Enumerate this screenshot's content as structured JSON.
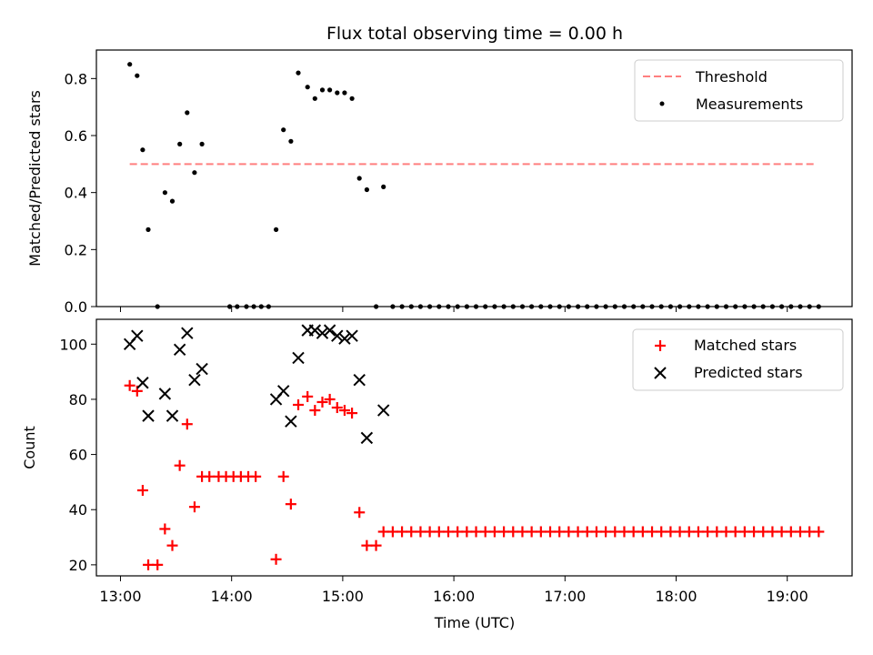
{
  "chart_data": [
    {
      "type": "scatter",
      "title": "Flux total observing time = 0.00 h",
      "xlabel": "",
      "ylabel": "Matched/Predicted stars",
      "xlim": [
        "12:47",
        "19:35"
      ],
      "ylim": [
        0,
        0.9
      ],
      "yticks": [
        0.0,
        0.2,
        0.4,
        0.6,
        0.8
      ],
      "ytick_labels": [
        "0.0",
        "0.2",
        "0.4",
        "0.6",
        "0.8"
      ],
      "grid": false,
      "legend_position": "top-right",
      "threshold": {
        "name": "Threshold",
        "y": 0.5,
        "x_start": "13:05",
        "x_end": "19:15",
        "color": "#ff7f7f"
      },
      "series": [
        {
          "name": "Measurements",
          "color": "#000000",
          "points": [
            [
              "13:05",
              0.85
            ],
            [
              "13:09",
              0.81
            ],
            [
              "13:12",
              0.55
            ],
            [
              "13:15",
              0.27
            ],
            [
              "13:20",
              0.0
            ],
            [
              "13:24",
              0.4
            ],
            [
              "13:28",
              0.37
            ],
            [
              "13:32",
              0.57
            ],
            [
              "13:36",
              0.68
            ],
            [
              "13:40",
              0.47
            ],
            [
              "13:44",
              0.57
            ],
            [
              "13:59",
              0.0
            ],
            [
              "14:03",
              0.0
            ],
            [
              "14:08",
              0.0
            ],
            [
              "14:12",
              0.0
            ],
            [
              "14:16",
              0.0
            ],
            [
              "14:20",
              0.0
            ],
            [
              "14:24",
              0.27
            ],
            [
              "14:28",
              0.62
            ],
            [
              "14:32",
              0.58
            ],
            [
              "14:36",
              0.82
            ],
            [
              "14:41",
              0.77
            ],
            [
              "14:45",
              0.73
            ],
            [
              "14:49",
              0.76
            ],
            [
              "14:53",
              0.76
            ],
            [
              "14:57",
              0.75
            ],
            [
              "15:01",
              0.75
            ],
            [
              "15:05",
              0.73
            ],
            [
              "15:09",
              0.45
            ],
            [
              "15:13",
              0.41
            ],
            [
              "15:18",
              0.0
            ],
            [
              "15:22",
              0.42
            ],
            [
              "15:27",
              0.0
            ],
            [
              "15:32",
              0.0
            ],
            [
              "15:37",
              0.0
            ],
            [
              "15:42",
              0.0
            ],
            [
              "15:47",
              0.0
            ],
            [
              "15:52",
              0.0
            ],
            [
              "15:57",
              0.0
            ],
            [
              "16:02",
              0.0
            ],
            [
              "16:07",
              0.0
            ],
            [
              "16:12",
              0.0
            ],
            [
              "16:17",
              0.0
            ],
            [
              "16:22",
              0.0
            ],
            [
              "16:27",
              0.0
            ],
            [
              "16:32",
              0.0
            ],
            [
              "16:37",
              0.0
            ],
            [
              "16:42",
              0.0
            ],
            [
              "16:47",
              0.0
            ],
            [
              "16:52",
              0.0
            ],
            [
              "16:57",
              0.0
            ],
            [
              "17:02",
              0.0
            ],
            [
              "17:07",
              0.0
            ],
            [
              "17:12",
              0.0
            ],
            [
              "17:17",
              0.0
            ],
            [
              "17:22",
              0.0
            ],
            [
              "17:27",
              0.0
            ],
            [
              "17:32",
              0.0
            ],
            [
              "17:37",
              0.0
            ],
            [
              "17:42",
              0.0
            ],
            [
              "17:47",
              0.0
            ],
            [
              "17:52",
              0.0
            ],
            [
              "17:57",
              0.0
            ],
            [
              "18:02",
              0.0
            ],
            [
              "18:07",
              0.0
            ],
            [
              "18:12",
              0.0
            ],
            [
              "18:17",
              0.0
            ],
            [
              "18:22",
              0.0
            ],
            [
              "18:27",
              0.0
            ],
            [
              "18:32",
              0.0
            ],
            [
              "18:37",
              0.0
            ],
            [
              "18:42",
              0.0
            ],
            [
              "18:47",
              0.0
            ],
            [
              "18:52",
              0.0
            ],
            [
              "18:57",
              0.0
            ],
            [
              "19:02",
              0.0
            ],
            [
              "19:07",
              0.0
            ],
            [
              "19:12",
              0.0
            ],
            [
              "19:17",
              0.0
            ]
          ]
        }
      ]
    },
    {
      "type": "scatter",
      "title": "",
      "xlabel": "Time (UTC)",
      "ylabel": "Count",
      "xlim": [
        "12:47",
        "19:35"
      ],
      "ylim": [
        16,
        109
      ],
      "xticks": [
        "13:00",
        "14:00",
        "15:00",
        "16:00",
        "17:00",
        "18:00",
        "19:00"
      ],
      "yticks": [
        20,
        40,
        60,
        80,
        100
      ],
      "ytick_labels": [
        "20",
        "40",
        "60",
        "80",
        "100"
      ],
      "grid": false,
      "legend_position": "top-right",
      "series": [
        {
          "name": "Matched stars",
          "marker": "plus",
          "color": "#ff0000",
          "points": [
            [
              "13:05",
              85
            ],
            [
              "13:09",
              83
            ],
            [
              "13:12",
              47
            ],
            [
              "13:15",
              20
            ],
            [
              "13:20",
              20
            ],
            [
              "13:24",
              33
            ],
            [
              "13:28",
              27
            ],
            [
              "13:32",
              56
            ],
            [
              "13:36",
              71
            ],
            [
              "13:40",
              41
            ],
            [
              "13:44",
              52
            ],
            [
              "13:48",
              52
            ],
            [
              "13:53",
              52
            ],
            [
              "13:57",
              52
            ],
            [
              "14:01",
              52
            ],
            [
              "14:05",
              52
            ],
            [
              "14:09",
              52
            ],
            [
              "14:13",
              52
            ],
            [
              "14:24",
              22
            ],
            [
              "14:28",
              52
            ],
            [
              "14:32",
              42
            ],
            [
              "14:36",
              78
            ],
            [
              "14:41",
              81
            ],
            [
              "14:45",
              76
            ],
            [
              "14:49",
              79
            ],
            [
              "14:53",
              80
            ],
            [
              "14:57",
              77
            ],
            [
              "15:01",
              76
            ],
            [
              "15:05",
              75
            ],
            [
              "15:09",
              39
            ],
            [
              "15:13",
              27
            ],
            [
              "15:18",
              27
            ],
            [
              "15:22",
              32
            ],
            [
              "15:27",
              32
            ],
            [
              "15:32",
              32
            ],
            [
              "15:37",
              32
            ],
            [
              "15:42",
              32
            ],
            [
              "15:47",
              32
            ],
            [
              "15:52",
              32
            ],
            [
              "15:57",
              32
            ],
            [
              "16:02",
              32
            ],
            [
              "16:07",
              32
            ],
            [
              "16:12",
              32
            ],
            [
              "16:17",
              32
            ],
            [
              "16:22",
              32
            ],
            [
              "16:27",
              32
            ],
            [
              "16:32",
              32
            ],
            [
              "16:37",
              32
            ],
            [
              "16:42",
              32
            ],
            [
              "16:47",
              32
            ],
            [
              "16:52",
              32
            ],
            [
              "16:57",
              32
            ],
            [
              "17:02",
              32
            ],
            [
              "17:07",
              32
            ],
            [
              "17:12",
              32
            ],
            [
              "17:17",
              32
            ],
            [
              "17:22",
              32
            ],
            [
              "17:27",
              32
            ],
            [
              "17:32",
              32
            ],
            [
              "17:37",
              32
            ],
            [
              "17:42",
              32
            ],
            [
              "17:47",
              32
            ],
            [
              "17:52",
              32
            ],
            [
              "17:57",
              32
            ],
            [
              "18:02",
              32
            ],
            [
              "18:07",
              32
            ],
            [
              "18:12",
              32
            ],
            [
              "18:17",
              32
            ],
            [
              "18:22",
              32
            ],
            [
              "18:27",
              32
            ],
            [
              "18:32",
              32
            ],
            [
              "18:37",
              32
            ],
            [
              "18:42",
              32
            ],
            [
              "18:47",
              32
            ],
            [
              "18:52",
              32
            ],
            [
              "18:57",
              32
            ],
            [
              "19:02",
              32
            ],
            [
              "19:07",
              32
            ],
            [
              "19:12",
              32
            ],
            [
              "19:17",
              32
            ]
          ]
        },
        {
          "name": "Predicted stars",
          "marker": "x",
          "color": "#000000",
          "points": [
            [
              "13:05",
              100
            ],
            [
              "13:09",
              103
            ],
            [
              "13:12",
              86
            ],
            [
              "13:15",
              74
            ],
            [
              "13:24",
              82
            ],
            [
              "13:28",
              74
            ],
            [
              "13:32",
              98
            ],
            [
              "13:36",
              104
            ],
            [
              "13:40",
              87
            ],
            [
              "13:44",
              91
            ],
            [
              "14:24",
              80
            ],
            [
              "14:28",
              83
            ],
            [
              "14:32",
              72
            ],
            [
              "14:36",
              95
            ],
            [
              "14:41",
              105
            ],
            [
              "14:45",
              105
            ],
            [
              "14:49",
              104
            ],
            [
              "14:53",
              105
            ],
            [
              "14:57",
              103
            ],
            [
              "15:01",
              102
            ],
            [
              "15:05",
              103
            ],
            [
              "15:09",
              87
            ],
            [
              "15:13",
              66
            ],
            [
              "15:22",
              76
            ]
          ]
        }
      ]
    }
  ]
}
